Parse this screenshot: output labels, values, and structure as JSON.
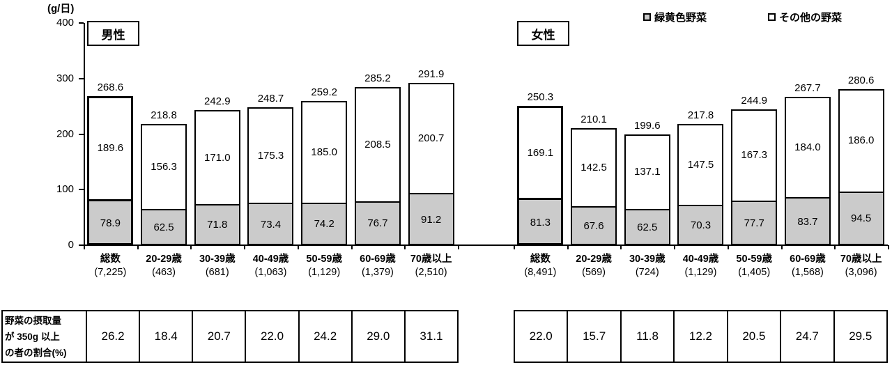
{
  "colors": {
    "green_yellow_fill": "#cbcbcb",
    "other_fill": "#ffffff",
    "border": "#000000",
    "background": "#ffffff"
  },
  "chart_data": {
    "type": "bar",
    "stacked": true,
    "unit": "(g/日)",
    "ylim": [
      0,
      400
    ],
    "yticks": [
      0,
      100,
      200,
      300,
      400
    ],
    "grid": false,
    "legend": [
      "緑黄色野菜",
      "その他の野菜"
    ],
    "legend_position": "top-right",
    "series_note": "totals = green_yellow + other (stacked grams per day)",
    "groups": [
      {
        "title": "男性",
        "categories": [
          "総数",
          "20-29歳",
          "30-39歳",
          "40-49歳",
          "50-59歳",
          "60-69歳",
          "70歳以上"
        ],
        "counts": [
          "(7,225)",
          "(463)",
          "(681)",
          "(1,063)",
          "(1,129)",
          "(1,379)",
          "(2,510)"
        ],
        "totals": [
          268.6,
          218.8,
          242.9,
          248.7,
          259.2,
          285.2,
          291.9
        ],
        "green_yellow": [
          78.9,
          62.5,
          71.8,
          73.4,
          74.2,
          76.7,
          91.2
        ],
        "other": [
          189.6,
          156.3,
          171.0,
          175.3,
          185.0,
          208.5,
          200.7
        ],
        "ratio_350g": [
          26.2,
          18.4,
          20.7,
          22.0,
          24.2,
          29.0,
          31.1
        ],
        "emphasized_index": 0
      },
      {
        "title": "女性",
        "categories": [
          "総数",
          "20-29歳",
          "30-39歳",
          "40-49歳",
          "50-59歳",
          "60-69歳",
          "70歳以上"
        ],
        "counts": [
          "(8,491)",
          "(569)",
          "(724)",
          "(1,129)",
          "(1,405)",
          "(1,568)",
          "(3,096)"
        ],
        "totals": [
          250.3,
          210.1,
          199.6,
          217.8,
          244.9,
          267.7,
          280.6
        ],
        "green_yellow": [
          81.3,
          67.6,
          62.5,
          70.3,
          77.7,
          83.7,
          94.5
        ],
        "other": [
          169.1,
          142.5,
          137.1,
          147.5,
          167.3,
          184.0,
          186.0
        ],
        "ratio_350g": [
          22.0,
          15.7,
          11.8,
          12.2,
          20.5,
          24.7,
          29.5
        ],
        "emphasized_index": 0
      }
    ],
    "table_header_lines": [
      "野菜の摂取量",
      "が 350g 以上",
      "の者の割合(%)"
    ]
  }
}
